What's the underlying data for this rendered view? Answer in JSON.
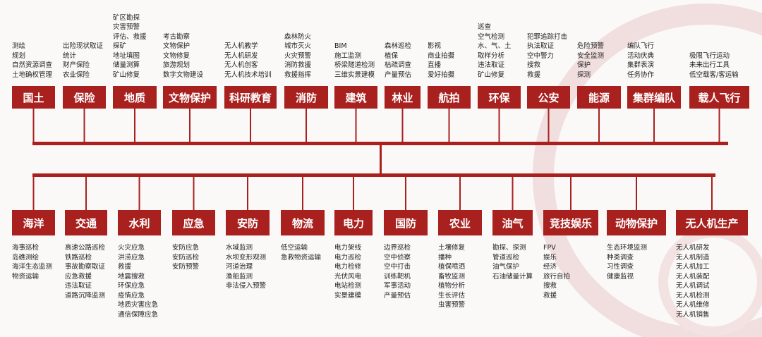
{
  "top": [
    {
      "label": "国土",
      "items": [
        "测绘",
        "规划",
        "自然资源调查",
        "土地确权管理"
      ]
    },
    {
      "label": "保险",
      "items": [
        "出险现状取证",
        "统计",
        "财产保险",
        "农业保险"
      ]
    },
    {
      "label": "地质",
      "items": [
        "矿区勘探",
        "灾害预警",
        "评估、救援",
        "探矿",
        "地址填图",
        "储量测算",
        "矿山修复"
      ]
    },
    {
      "label": "文物保护",
      "items": [
        "考古勘察",
        "文物保护",
        "文物修复",
        "旅游规划",
        "数字文物建设"
      ]
    },
    {
      "label": "科研教育",
      "items": [
        "无人机教学",
        "无人机研发",
        "无人机创客",
        "无人机技术培训"
      ]
    },
    {
      "label": "消防",
      "items": [
        "森林防火",
        "城市灭火",
        "火灾预警",
        "消防救援",
        "救援指挥"
      ]
    },
    {
      "label": "建筑",
      "items": [
        "BIM",
        "施工监测",
        "桥梁隧道检测",
        "三维实景建模"
      ]
    },
    {
      "label": "林业",
      "items": [
        "森林巡检",
        "植保",
        "枯疏调查",
        "产量预估"
      ]
    },
    {
      "label": "航拍",
      "items": [
        "影视",
        "商业拍摄",
        "直播",
        "爱好拍摄"
      ]
    },
    {
      "label": "环保",
      "items": [
        "巡查",
        "空气检测",
        "水、气、土",
        "取样分析",
        "违法取证",
        "矿山修复"
      ]
    },
    {
      "label": "公安",
      "items": [
        "犯罪追踪打击",
        "执法取证",
        "空中警力",
        "搜救",
        "救援"
      ]
    },
    {
      "label": "能源",
      "items": [
        "危险预警",
        "安全监测",
        "保护",
        "探测"
      ]
    },
    {
      "label": "集群编队",
      "items": [
        "编队飞行",
        "活动庆典",
        "集群表演",
        "任务协作"
      ]
    },
    {
      "label": "载人飞行",
      "items": [
        "极限飞行运动",
        "未来出行工具",
        "低空载客/客运输"
      ]
    }
  ],
  "bottom": [
    {
      "label": "海洋",
      "items": [
        "海事巡检",
        "岛礁测绘",
        "海洋生态监测",
        "物资运输"
      ]
    },
    {
      "label": "交通",
      "items": [
        "高速公路巡检",
        "铁路巡检",
        "事故勘察取证",
        "应急救援",
        "违法取证",
        "道路沉降监测"
      ]
    },
    {
      "label": "水利",
      "items": [
        "火灾应急",
        "洪涝应急",
        "救援",
        "地震搜救",
        "环保应急",
        "疫情应急",
        "地质灾害应急",
        "通信保障应急"
      ]
    },
    {
      "label": "应急",
      "items": [
        "安防应急",
        "安防巡检",
        "安防预警"
      ]
    },
    {
      "label": "安防",
      "items": [
        "水域监测",
        "水坝变形观测",
        "河道治理",
        "渔船监测",
        "非法侵入预警"
      ]
    },
    {
      "label": "物流",
      "items": [
        "低空运输",
        "急救物资运输"
      ]
    },
    {
      "label": "电力",
      "items": [
        "电力架线",
        "电力巡检",
        "电力检修",
        "光伏风电",
        "电站检测",
        "实景建模"
      ]
    },
    {
      "label": "国防",
      "items": [
        "边界巡检",
        "空中侦察",
        "空中打击",
        "训练靶机",
        "军事活动",
        "产量预估"
      ]
    },
    {
      "label": "农业",
      "items": [
        "土壤修复",
        "播种",
        "植保喷洒",
        "畜牧监测",
        "植物分析",
        "生长评估",
        "虫害预警"
      ]
    },
    {
      "label": "油气",
      "items": [
        "勘探、探测",
        "管道巡检",
        "油气保护",
        "石油储量计算"
      ]
    },
    {
      "label": "竞技娱乐",
      "items": [
        "FPV",
        "娱乐",
        "经济",
        "旅行自拍",
        "搜救",
        "救援"
      ]
    },
    {
      "label": "动物保护",
      "items": [
        "生态环境监测",
        "种类调查",
        "习性调查",
        "健康监视"
      ]
    },
    {
      "label": "无人机生产",
      "items": [
        "无人机研发",
        "无人机制造",
        "无人机加工",
        "无人机装配",
        "无人机调试",
        "无人机检测",
        "无人机维修",
        "无人机销售"
      ]
    }
  ]
}
